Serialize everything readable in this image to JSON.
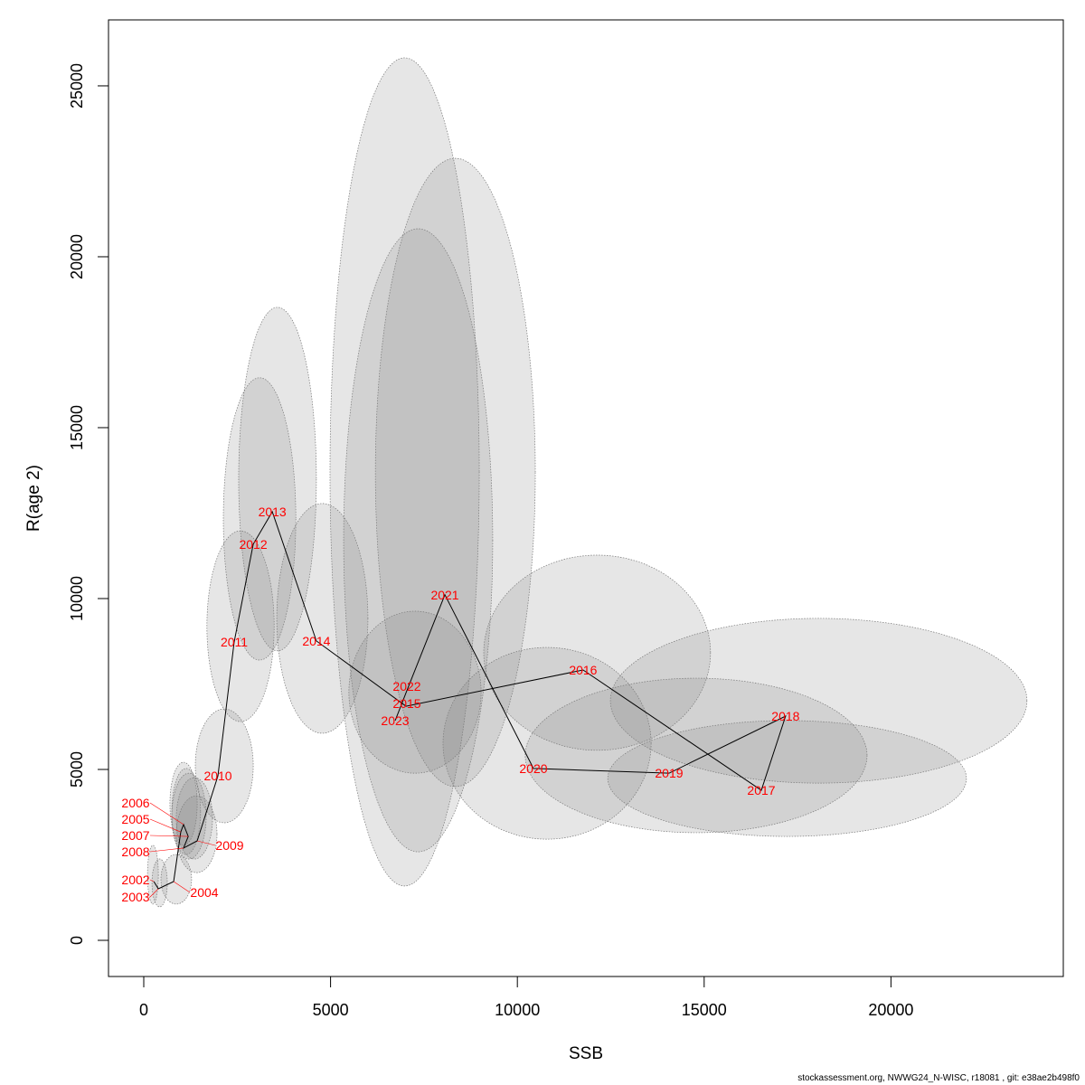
{
  "chart_data": {
    "type": "scatter",
    "title": "",
    "xlabel": "SSB",
    "ylabel": "R(age 2)",
    "xlim": [
      -944,
      24613
    ],
    "ylim": [
      -1058,
      26930
    ],
    "xticks": [
      0,
      5000,
      10000,
      15000,
      20000
    ],
    "yticks": [
      0,
      5000,
      10000,
      15000,
      20000,
      25000
    ],
    "grid": false,
    "point_label_color": "#ff0000",
    "ellipse_fill": "#808080",
    "points": [
      {
        "label": "2002",
        "x": 270,
        "y": 1720,
        "ell": [
          100,
          390,
          1060,
          2780
        ]
      },
      {
        "label": "2003",
        "x": 390,
        "y": 1510,
        "ell": [
          220,
          630,
          980,
          2380
        ]
      },
      {
        "label": "2004",
        "x": 800,
        "y": 1720,
        "ell": [
          460,
          1280,
          1060,
          2510
        ]
      },
      {
        "label": "2005",
        "x": 990,
        "y": 3170,
        "ell": [
          750,
          1520,
          2510,
          5030
        ]
      },
      {
        "label": "2006",
        "x": 1065,
        "y": 3390,
        "ell": [
          700,
          1430,
          2780,
          5210
        ]
      },
      {
        "label": "2007",
        "x": 1190,
        "y": 3040,
        "ell": [
          870,
          1840,
          2380,
          4760
        ]
      },
      {
        "label": "2008",
        "x": 1065,
        "y": 2700,
        "ell": [
          750,
          1670,
          2380,
          4890
        ]
      },
      {
        "label": "2009",
        "x": 1430,
        "y": 2910,
        "ell": [
          870,
          1960,
          1980,
          4230
        ]
      },
      {
        "label": "2010",
        "x": 1985,
        "y": 4810,
        "ell": [
          1380,
          2930,
          3440,
          6770
        ]
      },
      {
        "label": "2011",
        "x": 2420,
        "y": 8730,
        "ell": [
          1690,
          3490,
          6400,
          11980
        ]
      },
      {
        "label": "2012",
        "x": 2930,
        "y": 11590,
        "ell": [
          2130,
          4070,
          8200,
          16460
        ]
      },
      {
        "label": "2013",
        "x": 3440,
        "y": 12540,
        "ell": [
          2540,
          4620,
          8470,
          18520
        ]
      },
      {
        "label": "2014",
        "x": 4620,
        "y": 8760,
        "ell": [
          3560,
          6000,
          6060,
          12780
        ]
      },
      {
        "label": "2015",
        "x": 7020,
        "y": 6850,
        "ell": [
          5490,
          9030,
          4890,
          9630
        ]
      },
      {
        "label": "2016",
        "x": 11760,
        "y": 7910,
        "ell": [
          9100,
          15170,
          5560,
          11270
        ]
      },
      {
        "label": "2017",
        "x": 16530,
        "y": 4390,
        "ell": [
          12420,
          22020,
          3040,
          6430
        ]
      },
      {
        "label": "2018",
        "x": 17180,
        "y": 6560,
        "ell": [
          12490,
          23640,
          4600,
          9420
        ]
      },
      {
        "label": "2019",
        "x": 14060,
        "y": 4890,
        "ell": [
          10210,
          19360,
          3150,
          7670
        ]
      },
      {
        "label": "2020",
        "x": 10430,
        "y": 5030,
        "ell": [
          8010,
          13580,
          2960,
          8570
        ]
      },
      {
        "label": "2021",
        "x": 8060,
        "y": 10110,
        "ell": [
          6200,
          10480,
          4500,
          22880
        ]
      },
      {
        "label": "2022",
        "x": 7040,
        "y": 7300,
        "ell": [
          5350,
          9340,
          2590,
          20820
        ]
      },
      {
        "label": "2023",
        "x": 6730,
        "y": 6430,
        "ell": [
          4985,
          8980,
          1590,
          25820
        ]
      }
    ]
  },
  "footer": "stockassessment.org, NWWG24_N-WISC, r18081 , git: e38ae2b498f0"
}
